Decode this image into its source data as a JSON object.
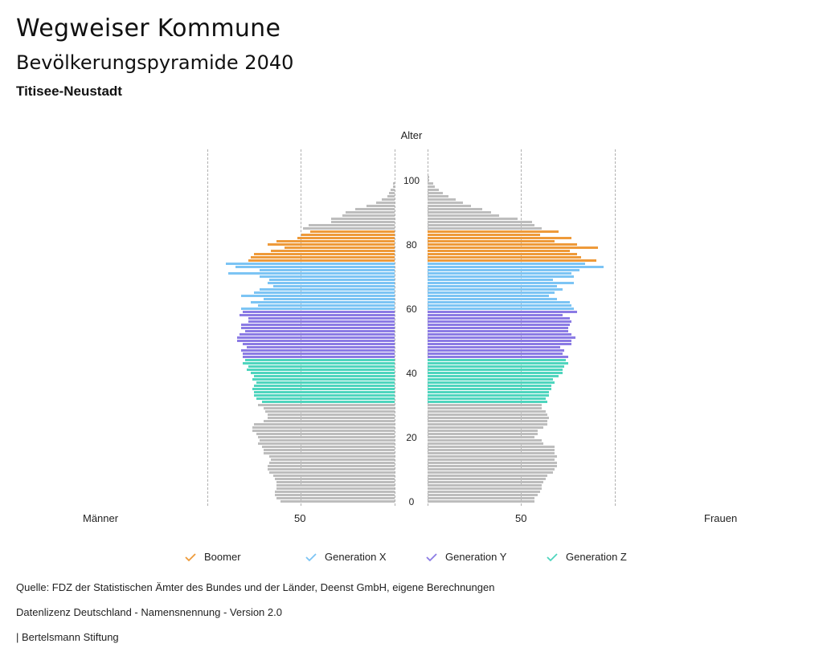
{
  "header": {
    "title": "Wegweiser Kommune",
    "subtitle": "Bevölkerungspyramide 2040",
    "region": "Titisee-Neustadt"
  },
  "axis": {
    "y_title": "Alter",
    "age_ticks": [
      "0",
      "20",
      "40",
      "60",
      "80",
      "100"
    ],
    "left_label": "Männer",
    "right_label": "Frauen",
    "left_tick": "50",
    "right_tick": "50"
  },
  "legend": [
    {
      "label": "Boomer",
      "color": "#EE9A3A"
    },
    {
      "label": "Generation X",
      "color": "#7CC4F4"
    },
    {
      "label": "Generation Y",
      "color": "#8B7BE4"
    },
    {
      "label": "Generation Z",
      "color": "#4FD5BE"
    }
  ],
  "footer": {
    "source": "Quelle: FDZ der Statistischen Ämter des Bundes und der Länder, Deenst GmbH, eigene Berechnungen",
    "license": "Datenlizenz Deutschland - Namensnennung - Version 2.0",
    "publisher": "| Bertelsmann Stiftung"
  },
  "colors": {
    "other": "#BDBDBD",
    "grid": "#B0B0B0"
  },
  "chart_data": {
    "type": "bar",
    "orientation": "horizontal-pyramid",
    "title": "Bevölkerungspyramide 2040",
    "subtitle": "Titisee-Neustadt",
    "ylabel": "Alter",
    "xlabel_left": "Männer",
    "xlabel_right": "Frauen",
    "xlim": [
      0,
      100
    ],
    "x_ticks": [
      0,
      50,
      100
    ],
    "y_ticks": [
      0,
      20,
      40,
      60,
      80,
      100
    ],
    "grid": true,
    "legend_position": "bottom",
    "groups": [
      {
        "name": "Boomer",
        "age_range": [
          75,
          84
        ],
        "color": "#EE9A3A"
      },
      {
        "name": "Generation X",
        "age_range": [
          60,
          74
        ],
        "color": "#7CC4F4"
      },
      {
        "name": "Generation Y",
        "age_range": [
          45,
          59
        ],
        "color": "#8B7BE4"
      },
      {
        "name": "Generation Z",
        "age_range": [
          31,
          44
        ],
        "color": "#4FD5BE"
      }
    ],
    "ages": [
      0,
      1,
      2,
      3,
      4,
      5,
      6,
      7,
      8,
      9,
      10,
      11,
      12,
      13,
      14,
      15,
      16,
      17,
      18,
      19,
      20,
      21,
      22,
      23,
      24,
      25,
      26,
      27,
      28,
      29,
      30,
      31,
      32,
      33,
      34,
      35,
      36,
      37,
      38,
      39,
      40,
      41,
      42,
      43,
      44,
      45,
      46,
      47,
      48,
      49,
      50,
      51,
      52,
      53,
      54,
      55,
      56,
      57,
      58,
      59,
      60,
      61,
      62,
      63,
      64,
      65,
      66,
      67,
      68,
      69,
      70,
      71,
      72,
      73,
      74,
      75,
      76,
      77,
      78,
      79,
      80,
      81,
      82,
      83,
      84,
      85,
      86,
      87,
      88,
      89,
      90,
      91,
      92,
      93,
      94,
      95,
      96,
      97,
      98,
      99,
      100,
      101
    ],
    "series": [
      {
        "name": "Männer",
        "values": [
          61,
          63,
          64,
          64,
          63,
          63,
          63,
          64,
          65,
          67,
          68,
          68,
          67,
          66,
          67,
          70,
          70,
          71,
          73,
          72,
          73,
          74,
          76,
          76,
          75,
          70,
          68,
          68,
          69,
          70,
          73,
          71,
          74,
          75,
          75,
          76,
          75,
          74,
          76,
          75,
          77,
          79,
          78,
          81,
          80,
          81,
          81,
          82,
          79,
          81,
          84,
          84,
          83,
          80,
          82,
          82,
          78,
          78,
          83,
          81,
          82,
          73,
          77,
          70,
          82,
          75,
          72,
          65,
          68,
          67,
          72,
          89,
          72,
          85,
          90,
          78,
          77,
          75,
          66,
          59,
          68,
          63,
          52,
          50,
          45,
          49,
          46,
          34,
          34,
          28,
          26,
          21,
          15,
          10,
          7,
          4,
          3,
          2,
          1,
          1,
          0,
          0
        ]
      },
      {
        "name": "Frauen",
        "values": [
          57,
          57,
          59,
          60,
          61,
          61,
          62,
          63,
          64,
          67,
          68,
          69,
          69,
          68,
          69,
          68,
          68,
          68,
          62,
          61,
          57,
          59,
          59,
          62,
          64,
          64,
          65,
          64,
          63,
          61,
          61,
          64,
          63,
          65,
          65,
          66,
          66,
          68,
          67,
          70,
          72,
          72,
          73,
          75,
          74,
          75,
          72,
          73,
          71,
          77,
          77,
          79,
          77,
          75,
          75,
          76,
          77,
          76,
          72,
          80,
          78,
          77,
          76,
          69,
          65,
          68,
          72,
          69,
          78,
          67,
          78,
          77,
          81,
          94,
          84,
          90,
          82,
          80,
          76,
          91,
          80,
          68,
          77,
          60,
          70,
          61,
          57,
          56,
          48,
          38,
          34,
          29,
          23,
          19,
          15,
          11,
          8,
          6,
          4,
          3,
          1,
          1
        ]
      }
    ]
  }
}
